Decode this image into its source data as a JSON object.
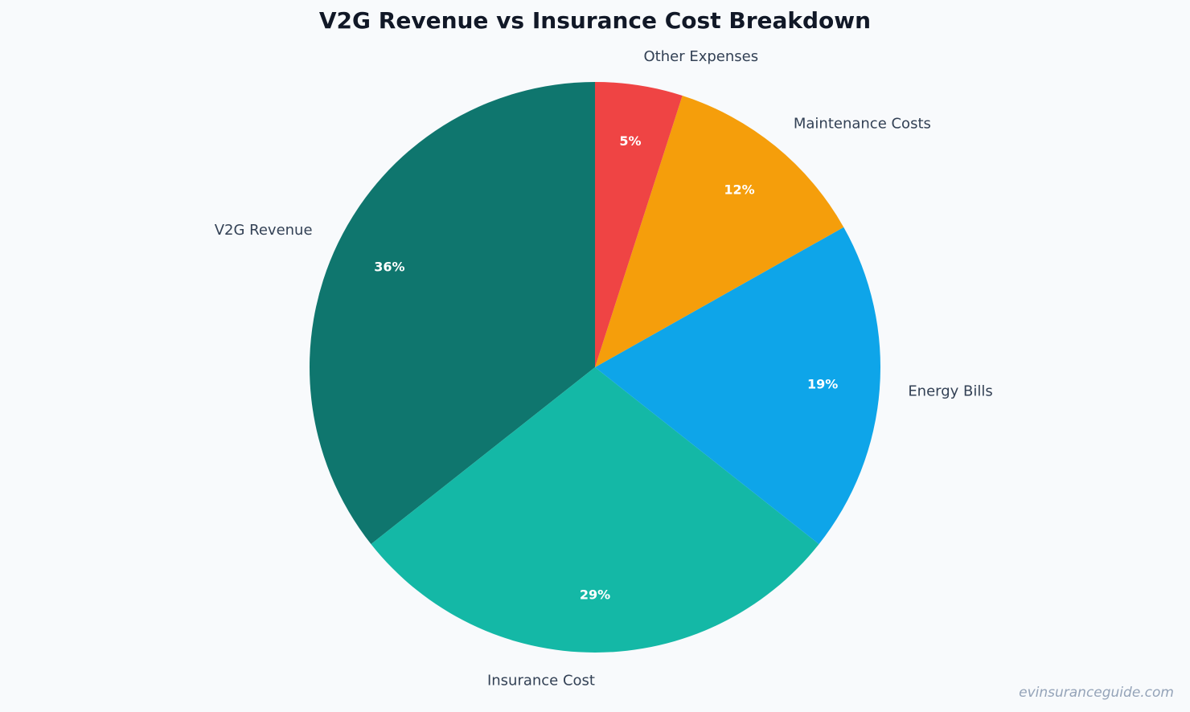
{
  "chart_data": {
    "type": "pie",
    "title": "V2G Revenue vs Insurance Cost Breakdown",
    "categories": [
      "V2G Revenue",
      "Insurance Cost",
      "Energy Bills",
      "Maintenance Costs",
      "Other Expenses"
    ],
    "values": [
      36,
      29,
      19,
      12,
      5
    ],
    "value_labels": [
      "36%",
      "29%",
      "19%",
      "12%",
      "5%"
    ],
    "colors": [
      "#0f766e",
      "#14b8a6",
      "#0ea5e9",
      "#f59e0b",
      "#ef4444"
    ],
    "watermark": "evinsuranceguide.com"
  }
}
